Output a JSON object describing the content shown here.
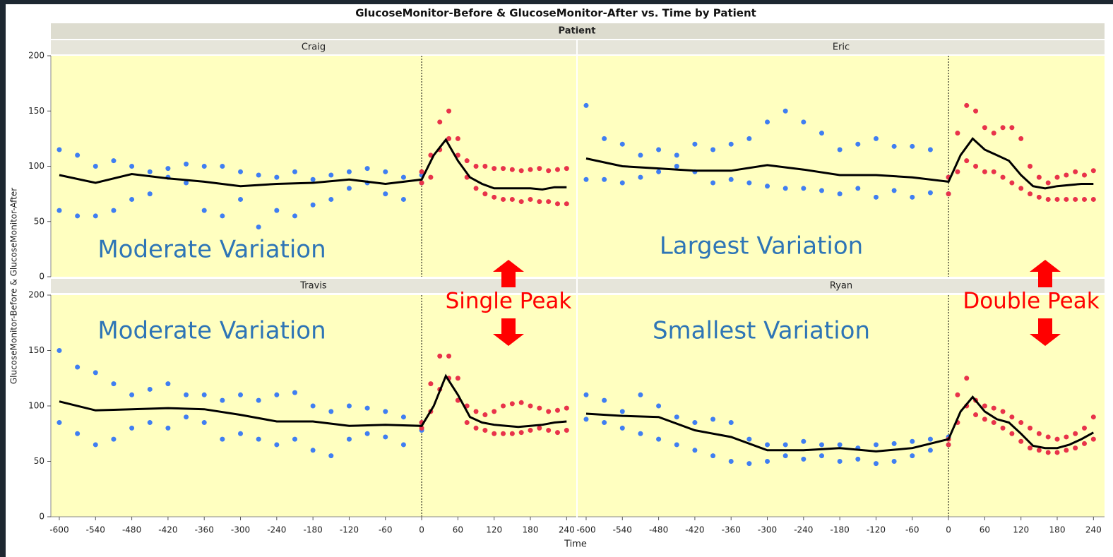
{
  "chart_data": {
    "type": "scatter",
    "title": "GlucoseMonitor-Before & GlucoseMonitor-After vs. Time by Patient",
    "group_label": "Patient",
    "x_label": "Time",
    "y_label": "GlucoseMonitor-Before & GlucoseMonitor-After",
    "xlim": [
      -614,
      256
    ],
    "ylim": [
      0,
      200
    ],
    "xticks": [
      -600,
      -540,
      -480,
      -420,
      -360,
      -300,
      -240,
      -180,
      -120,
      -60,
      0,
      60,
      120,
      180,
      240
    ],
    "yticks": [
      0,
      50,
      100,
      150,
      200
    ],
    "before_color": "#3f7ef2",
    "after_color": "#e8334a",
    "smooth_color": "#000000",
    "note_color": "#2e75b6",
    "peak_color": "#ff0000",
    "before_x": [
      -600,
      -570,
      -540,
      -510,
      -480,
      -450,
      -420,
      -390,
      -360,
      -330,
      -300,
      -270,
      -240,
      -210,
      -180,
      -150,
      -120,
      -90,
      -60,
      -30,
      0
    ],
    "after_x": [
      0,
      15,
      30,
      45,
      60,
      75,
      90,
      105,
      120,
      135,
      150,
      165,
      180,
      195,
      210,
      225,
      240
    ],
    "smooth_x": [
      -600,
      -540,
      -480,
      -420,
      -360,
      -300,
      -240,
      -180,
      -120,
      -60,
      0,
      20,
      40,
      60,
      80,
      100,
      120,
      140,
      160,
      180,
      200,
      220,
      240
    ],
    "panels": [
      {
        "name": "Craig",
        "note": "Moderate Variation",
        "before": [
          [
            115,
            110,
            100,
            105,
            100,
            95,
            98,
            102,
            100,
            100,
            95,
            92,
            90,
            95,
            88,
            92,
            95,
            98,
            95,
            90,
            92
          ],
          [
            60,
            55,
            55,
            60,
            70,
            75,
            90,
            85,
            60,
            55,
            70,
            45,
            60,
            55,
            65,
            70,
            80,
            85,
            75,
            70,
            85
          ]
        ],
        "after": [
          [
            95,
            110,
            140,
            150,
            125,
            105,
            100,
            100,
            98,
            98,
            97,
            96,
            97,
            98,
            96,
            97,
            98
          ],
          [
            85,
            90,
            115,
            125,
            110,
            90,
            80,
            75,
            72,
            70,
            70,
            68,
            70,
            68,
            68,
            66,
            66
          ]
        ],
        "smooth": [
          92,
          85,
          93,
          89,
          86,
          82,
          84,
          85,
          88,
          84,
          88,
          110,
          124,
          105,
          90,
          84,
          80,
          80,
          80,
          80,
          79,
          81,
          81
        ]
      },
      {
        "name": "Eric",
        "note": "Largest Variation",
        "before": [
          [
            155,
            125,
            120,
            110,
            115,
            110,
            120,
            115,
            120,
            125,
            140,
            150,
            140,
            130,
            115,
            120,
            125,
            118,
            118,
            115,
            90
          ],
          [
            88,
            88,
            85,
            90,
            95,
            100,
            95,
            85,
            88,
            85,
            82,
            80,
            80,
            78,
            75,
            80,
            72,
            78,
            72,
            76,
            75
          ]
        ],
        "after": [
          [
            90,
            130,
            155,
            150,
            135,
            130,
            135,
            135,
            125,
            100,
            90,
            85,
            90,
            92,
            95,
            92,
            96
          ],
          [
            75,
            95,
            105,
            100,
            95,
            95,
            90,
            85,
            80,
            75,
            72,
            70,
            70,
            70,
            70,
            70,
            70
          ]
        ],
        "smooth": [
          107,
          100,
          98,
          96,
          96,
          101,
          97,
          92,
          92,
          90,
          86,
          110,
          125,
          115,
          110,
          105,
          92,
          82,
          80,
          82,
          83,
          84,
          84
        ]
      },
      {
        "name": "Travis",
        "note": "Moderate Variation",
        "before": [
          [
            150,
            135,
            130,
            120,
            110,
            115,
            120,
            110,
            110,
            105,
            110,
            105,
            110,
            112,
            100,
            95,
            100,
            98,
            95,
            90,
            85
          ],
          [
            85,
            75,
            65,
            70,
            80,
            85,
            80,
            90,
            85,
            70,
            75,
            70,
            65,
            70,
            60,
            55,
            70,
            75,
            72,
            65,
            78
          ]
        ],
        "after": [
          [
            85,
            120,
            145,
            145,
            125,
            100,
            95,
            92,
            95,
            100,
            102,
            103,
            100,
            98,
            95,
            96,
            98
          ],
          [
            80,
            95,
            115,
            125,
            105,
            85,
            80,
            78,
            75,
            75,
            75,
            76,
            78,
            80,
            78,
            76,
            78
          ]
        ],
        "smooth": [
          104,
          96,
          97,
          98,
          97,
          92,
          86,
          86,
          82,
          83,
          82,
          100,
          127,
          110,
          90,
          85,
          83,
          82,
          81,
          82,
          83,
          85,
          86
        ]
      },
      {
        "name": "Ryan",
        "note": "Smallest Variation",
        "before": [
          [
            110,
            105,
            95,
            110,
            100,
            90,
            85,
            88,
            85,
            70,
            65,
            65,
            68,
            65,
            65,
            62,
            65,
            66,
            68,
            70,
            72
          ],
          [
            88,
            85,
            80,
            75,
            70,
            65,
            60,
            55,
            50,
            48,
            50,
            55,
            52,
            55,
            50,
            52,
            48,
            50,
            55,
            60,
            65
          ]
        ],
        "after": [
          [
            70,
            110,
            125,
            105,
            100,
            98,
            95,
            90,
            85,
            80,
            75,
            72,
            70,
            72,
            75,
            80,
            90
          ],
          [
            65,
            85,
            100,
            92,
            88,
            85,
            80,
            75,
            68,
            62,
            60,
            58,
            58,
            60,
            62,
            66,
            70
          ]
        ],
        "smooth": [
          93,
          91,
          90,
          78,
          72,
          60,
          60,
          62,
          59,
          62,
          70,
          95,
          108,
          95,
          88,
          85,
          75,
          64,
          62,
          62,
          65,
          70,
          76
        ]
      }
    ],
    "annotations": [
      {
        "text": "Single Peak"
      },
      {
        "text": "Double Peak"
      }
    ]
  }
}
